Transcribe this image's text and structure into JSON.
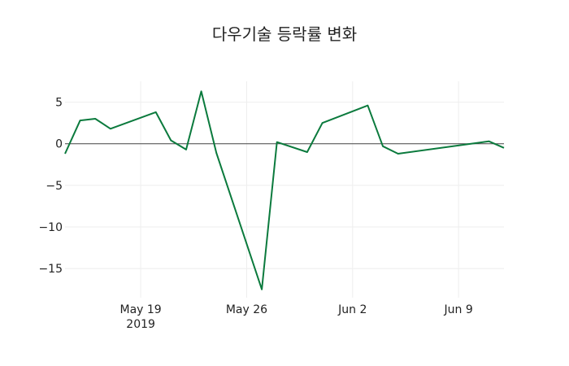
{
  "chart_data": {
    "type": "line",
    "title": "다우기술 등락률 변화",
    "xlabel": "",
    "ylabel": "",
    "x": [
      "2019-05-14",
      "2019-05-15",
      "2019-05-16",
      "2019-05-17",
      "2019-05-20",
      "2019-05-21",
      "2019-05-22",
      "2019-05-23",
      "2019-05-24",
      "2019-05-27",
      "2019-05-28",
      "2019-05-30",
      "2019-05-31",
      "2019-06-03",
      "2019-06-04",
      "2019-06-05",
      "2019-06-11",
      "2019-06-12"
    ],
    "series": [
      {
        "name": "등락률",
        "color": "#0b7a3d",
        "values": [
          -1.2,
          2.8,
          3.0,
          1.8,
          3.8,
          0.4,
          -0.7,
          6.3,
          -1.1,
          -17.5,
          0.2,
          -1.0,
          2.5,
          4.6,
          -0.3,
          -1.2,
          0.3,
          -0.5
        ]
      }
    ],
    "xlim": [
      "2019-05-14",
      "2019-06-12"
    ],
    "ylim": [
      -18.5,
      7.5
    ],
    "x_ticks": [
      {
        "date": "2019-05-19",
        "label": "May 19",
        "sublabel": "2019"
      },
      {
        "date": "2019-05-26",
        "label": "May 26",
        "sublabel": ""
      },
      {
        "date": "2019-06-02",
        "label": "Jun 2",
        "sublabel": ""
      },
      {
        "date": "2019-06-09",
        "label": "Jun 9",
        "sublabel": ""
      }
    ],
    "y_ticks": [
      5,
      0,
      -5,
      -10,
      -15
    ],
    "y_tick_labels": [
      "5",
      "0",
      "−5",
      "−10",
      "−15"
    ],
    "grid": true,
    "zero_line": true,
    "legend": false
  },
  "colors": {
    "line": "#0b7a3d",
    "grid": "#eeeeee",
    "zero_line": "#444444",
    "text": "#222222"
  }
}
